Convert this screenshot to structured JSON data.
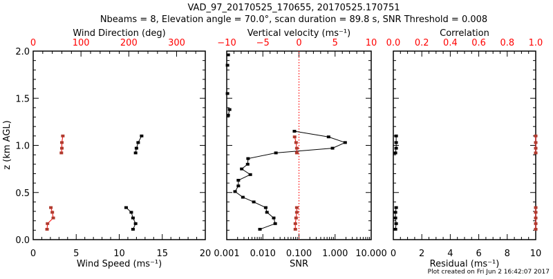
{
  "colors": {
    "primary": "#000000",
    "secondary": "#ff0000",
    "marker_secondary": "#b03a2e",
    "zero_line": "#ff0000"
  },
  "title_line1": "VAD_97_20170525_170655, 20170525.170751",
  "title_line2": "Nbeams = 8, Elevation angle = 70.0°, scan duration = 89.8 s, SNR Threshold = 0.008",
  "footer": "Plot created on Fri Jun  2 16:42:07 2017",
  "chart_data": [
    {
      "type": "line",
      "ylabel": "z (km AGL)",
      "ylim": [
        0,
        2
      ],
      "yticks": [
        "0.0",
        "0.5",
        "1.0",
        "1.5",
        "2.0"
      ],
      "xlabel": "Wind Speed (ms⁻¹)",
      "xlim": [
        0,
        20
      ],
      "xticks": [
        "0",
        "5",
        "10",
        "15",
        "20"
      ],
      "x2label": "Wind Direction (deg)",
      "x2lim": [
        0,
        360
      ],
      "x2ticks": [
        "0",
        "100",
        "200",
        "300"
      ],
      "series": [
        {
          "name": "Wind Speed",
          "axis": "bottom",
          "color": "#000000",
          "segments": [
            {
              "z": [
                1.1,
                1.03,
                0.97,
                0.92
              ],
              "x": [
                12.6,
                12.2,
                12.0,
                11.9
              ]
            },
            {
              "z": [
                0.34,
                0.29,
                0.23,
                0.17,
                0.11
              ],
              "x": [
                10.8,
                11.4,
                11.6,
                11.9,
                11.6
              ]
            }
          ]
        },
        {
          "name": "Wind Direction",
          "axis": "top",
          "color": "#b03a2e",
          "segments": [
            {
              "z": [
                1.1,
                1.03,
                0.97,
                0.92
              ],
              "x": [
                62,
                60,
                60,
                59
              ]
            },
            {
              "z": [
                0.34,
                0.29,
                0.23,
                0.17,
                0.11
              ],
              "x": [
                37,
                40,
                42,
                30,
                29
              ]
            }
          ]
        }
      ]
    },
    {
      "type": "line",
      "ylim": [
        0,
        2
      ],
      "xlabel": "SNR",
      "xscale": "log",
      "xlim": [
        0.001,
        10
      ],
      "xticks": [
        "0.001",
        "0.010",
        "0.100",
        "1.000",
        "10.000"
      ],
      "x2label": "Vertical velocity (ms⁻¹)",
      "x2lim": [
        -10,
        10
      ],
      "x2ticks": [
        "−10",
        "−5",
        "0",
        "5",
        "10"
      ],
      "zero_line": 0,
      "series": [
        {
          "name": "SNR",
          "axis": "bottom",
          "color": "#000000",
          "segments": [
            {
              "z": [
                1.15,
                1.09,
                1.03,
                0.97,
                0.92,
                0.86,
                0.8,
                0.75,
                0.69,
                0.63,
                0.57,
                0.51,
                0.45,
                0.4,
                0.34,
                0.29,
                0.23,
                0.17,
                0.11
              ],
              "x": [
                0.075,
                0.66,
                1.9,
                0.85,
                0.023,
                0.0039,
                0.0038,
                0.0026,
                0.0045,
                0.0021,
                0.0021,
                0.0017,
                0.0028,
                0.0056,
                0.012,
                0.013,
                0.02,
                0.022,
                0.0083
              ]
            },
            {
              "z": [
                1.96
              ],
              "x": [
                0.0011
              ]
            },
            {
              "z": [
                1.85
              ],
              "x": [
                0.00105
              ]
            },
            {
              "z": [
                1.55
              ],
              "x": [
                0.00105
              ]
            },
            {
              "z": [
                1.38,
                1.32
              ],
              "x": [
                0.0012,
                0.0011
              ]
            }
          ]
        },
        {
          "name": "Vertical velocity",
          "axis": "top",
          "color": "#b03a2e",
          "segments": [
            {
              "z": [
                1.09,
                1.03,
                0.97,
                0.92
              ],
              "x": [
                -0.6,
                -0.4,
                -0.3,
                -0.3
              ]
            },
            {
              "z": [
                0.34,
                0.29,
                0.23,
                0.17,
                0.11
              ],
              "x": [
                -0.3,
                -0.3,
                -0.4,
                -0.5,
                -0.5
              ]
            }
          ]
        }
      ]
    },
    {
      "type": "line",
      "ylim": [
        0,
        2
      ],
      "xlabel": "Residual (ms⁻¹)",
      "xlim": [
        0,
        10
      ],
      "xticks": [
        "0",
        "2",
        "4",
        "6",
        "8",
        "10"
      ],
      "x2label": "Correlation",
      "x2lim": [
        0,
        1
      ],
      "x2ticks": [
        "0.0",
        "0.2",
        "0.4",
        "0.6",
        "0.8",
        "1.0"
      ],
      "series": [
        {
          "name": "Residual",
          "axis": "bottom",
          "color": "#000000",
          "segments": [
            {
              "z": [
                1.1,
                1.03,
                0.97,
                0.92
              ],
              "x": [
                0.2,
                0.2,
                0.2,
                0.15
              ]
            },
            {
              "z": [
                0.34,
                0.29,
                0.23,
                0.17,
                0.11
              ],
              "x": [
                0.2,
                0.15,
                0.15,
                0.2,
                0.15
              ]
            }
          ]
        },
        {
          "name": "Correlation",
          "axis": "top",
          "color": "#b03a2e",
          "segments": [
            {
              "z": [
                1.1,
                1.03,
                0.97,
                0.92
              ],
              "x": [
                1.0,
                1.0,
                1.0,
                1.0
              ]
            },
            {
              "z": [
                0.34,
                0.29,
                0.23,
                0.17,
                0.11
              ],
              "x": [
                1.0,
                1.0,
                1.0,
                1.0,
                1.0
              ]
            }
          ]
        }
      ]
    }
  ]
}
